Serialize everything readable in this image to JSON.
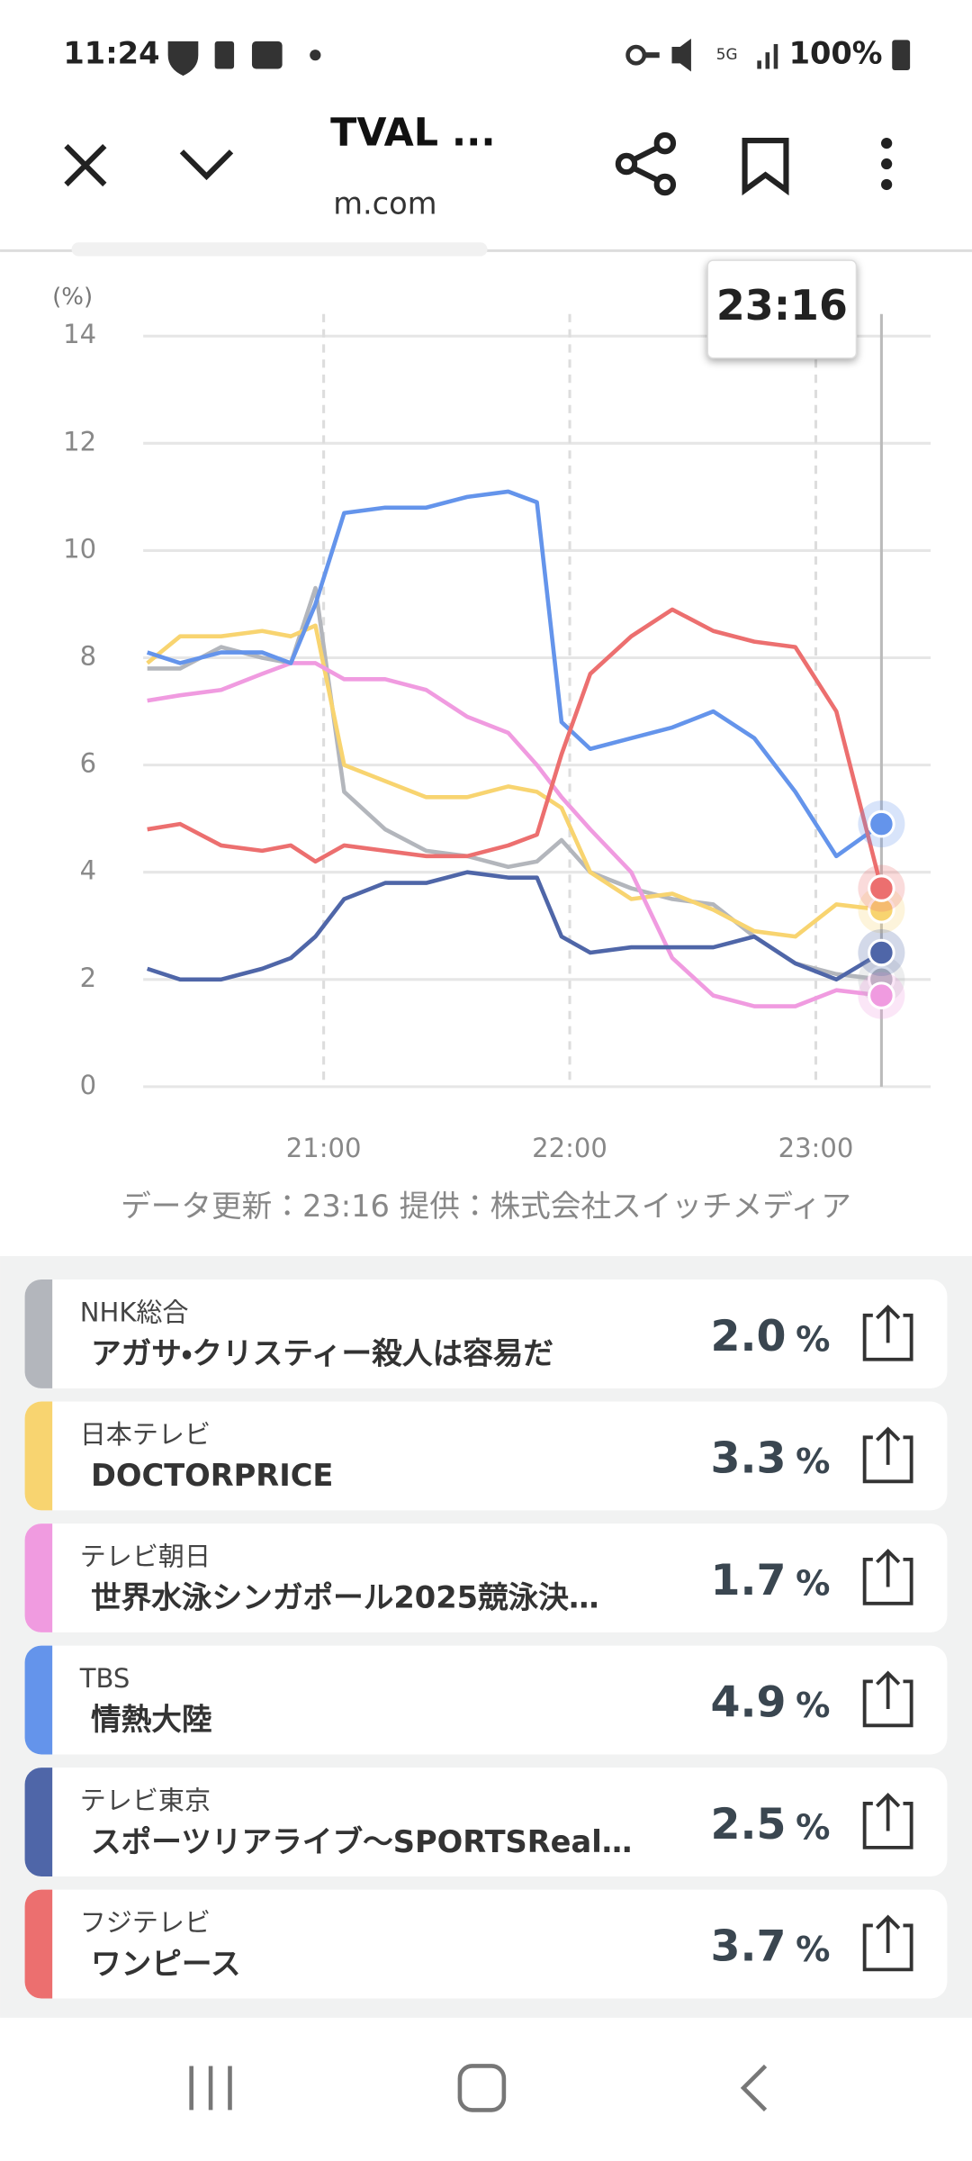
{
  "status_bar": {
    "time": "11:24",
    "battery": "100%"
  },
  "toolbar": {
    "title": "TVAL ...",
    "url": "m.com"
  },
  "chart_data": {
    "type": "line",
    "y_unit": "(%)",
    "tooltip": "23:16",
    "x": [
      "20:17",
      "20:25",
      "20:35",
      "20:45",
      "20:52",
      "20:58",
      "21:05",
      "21:15",
      "21:25",
      "21:35",
      "21:45",
      "21:52",
      "21:58",
      "22:05",
      "22:15",
      "22:25",
      "22:35",
      "22:45",
      "22:55",
      "23:05",
      "23:16"
    ],
    "xlim": [
      "20:16",
      "23:28"
    ],
    "xticks": [
      "21:00",
      "22:00",
      "23:00"
    ],
    "ylim": [
      0,
      14
    ],
    "yticks": [
      0,
      2,
      4,
      6,
      8,
      10,
      12,
      14
    ],
    "grid": true,
    "series": [
      {
        "name": "NHK総合",
        "color": "#b3b6bc",
        "values": [
          7.8,
          7.8,
          8.2,
          8.0,
          7.9,
          9.3,
          5.5,
          4.8,
          4.4,
          4.3,
          4.1,
          4.2,
          4.6,
          4.0,
          3.7,
          3.5,
          3.4,
          2.8,
          2.3,
          2.1,
          2.0
        ]
      },
      {
        "name": "日本テレビ",
        "color": "#f8d470",
        "values": [
          7.9,
          8.4,
          8.4,
          8.5,
          8.4,
          8.6,
          6.0,
          5.7,
          5.4,
          5.4,
          5.6,
          5.5,
          5.2,
          4.0,
          3.5,
          3.6,
          3.3,
          2.9,
          2.8,
          3.4,
          3.3
        ]
      },
      {
        "name": "テレビ朝日",
        "color": "#f09be0",
        "values": [
          7.2,
          7.3,
          7.4,
          7.7,
          7.9,
          7.9,
          7.6,
          7.6,
          7.4,
          6.9,
          6.6,
          6.0,
          5.4,
          4.8,
          4.0,
          2.4,
          1.7,
          1.5,
          1.5,
          1.8,
          1.7
        ]
      },
      {
        "name": "TBS",
        "color": "#6494eb",
        "values": [
          8.1,
          7.9,
          8.1,
          8.1,
          7.9,
          9.0,
          10.7,
          10.8,
          10.8,
          11.0,
          11.1,
          10.9,
          6.8,
          6.3,
          6.5,
          6.7,
          7.0,
          6.5,
          5.5,
          4.3,
          4.9
        ]
      },
      {
        "name": "テレビ東京",
        "color": "#4f66a8",
        "values": [
          2.2,
          2.0,
          2.0,
          2.2,
          2.4,
          2.8,
          3.5,
          3.8,
          3.8,
          4.0,
          3.9,
          3.9,
          2.8,
          2.5,
          2.6,
          2.6,
          2.6,
          2.8,
          2.3,
          2.0,
          2.5
        ]
      },
      {
        "name": "フジテレビ",
        "color": "#ec6f6f",
        "values": [
          4.8,
          4.9,
          4.5,
          4.4,
          4.5,
          4.2,
          4.5,
          4.4,
          4.3,
          4.3,
          4.5,
          4.7,
          6.2,
          7.7,
          8.4,
          8.9,
          8.5,
          8.3,
          8.2,
          7.0,
          3.7
        ]
      }
    ]
  },
  "footer_note": "データ更新：23:16  提供：株式会社スイッチメディア",
  "unit": "%",
  "programs": [
    {
      "program": "アガサ・クリスティー殺人は容易だ",
      "rating": "2.0"
    },
    {
      "program": "DOCTORPRICE",
      "rating": "3.3"
    },
    {
      "program": "世界水泳シンガポール2025競泳決…",
      "rating": "1.7"
    },
    {
      "program": "情熱大陸",
      "rating": "4.9"
    },
    {
      "program": "スポーツリアライブ～SPORTSReal…",
      "rating": "2.5"
    },
    {
      "program": "ワンピース",
      "rating": "3.7"
    }
  ]
}
